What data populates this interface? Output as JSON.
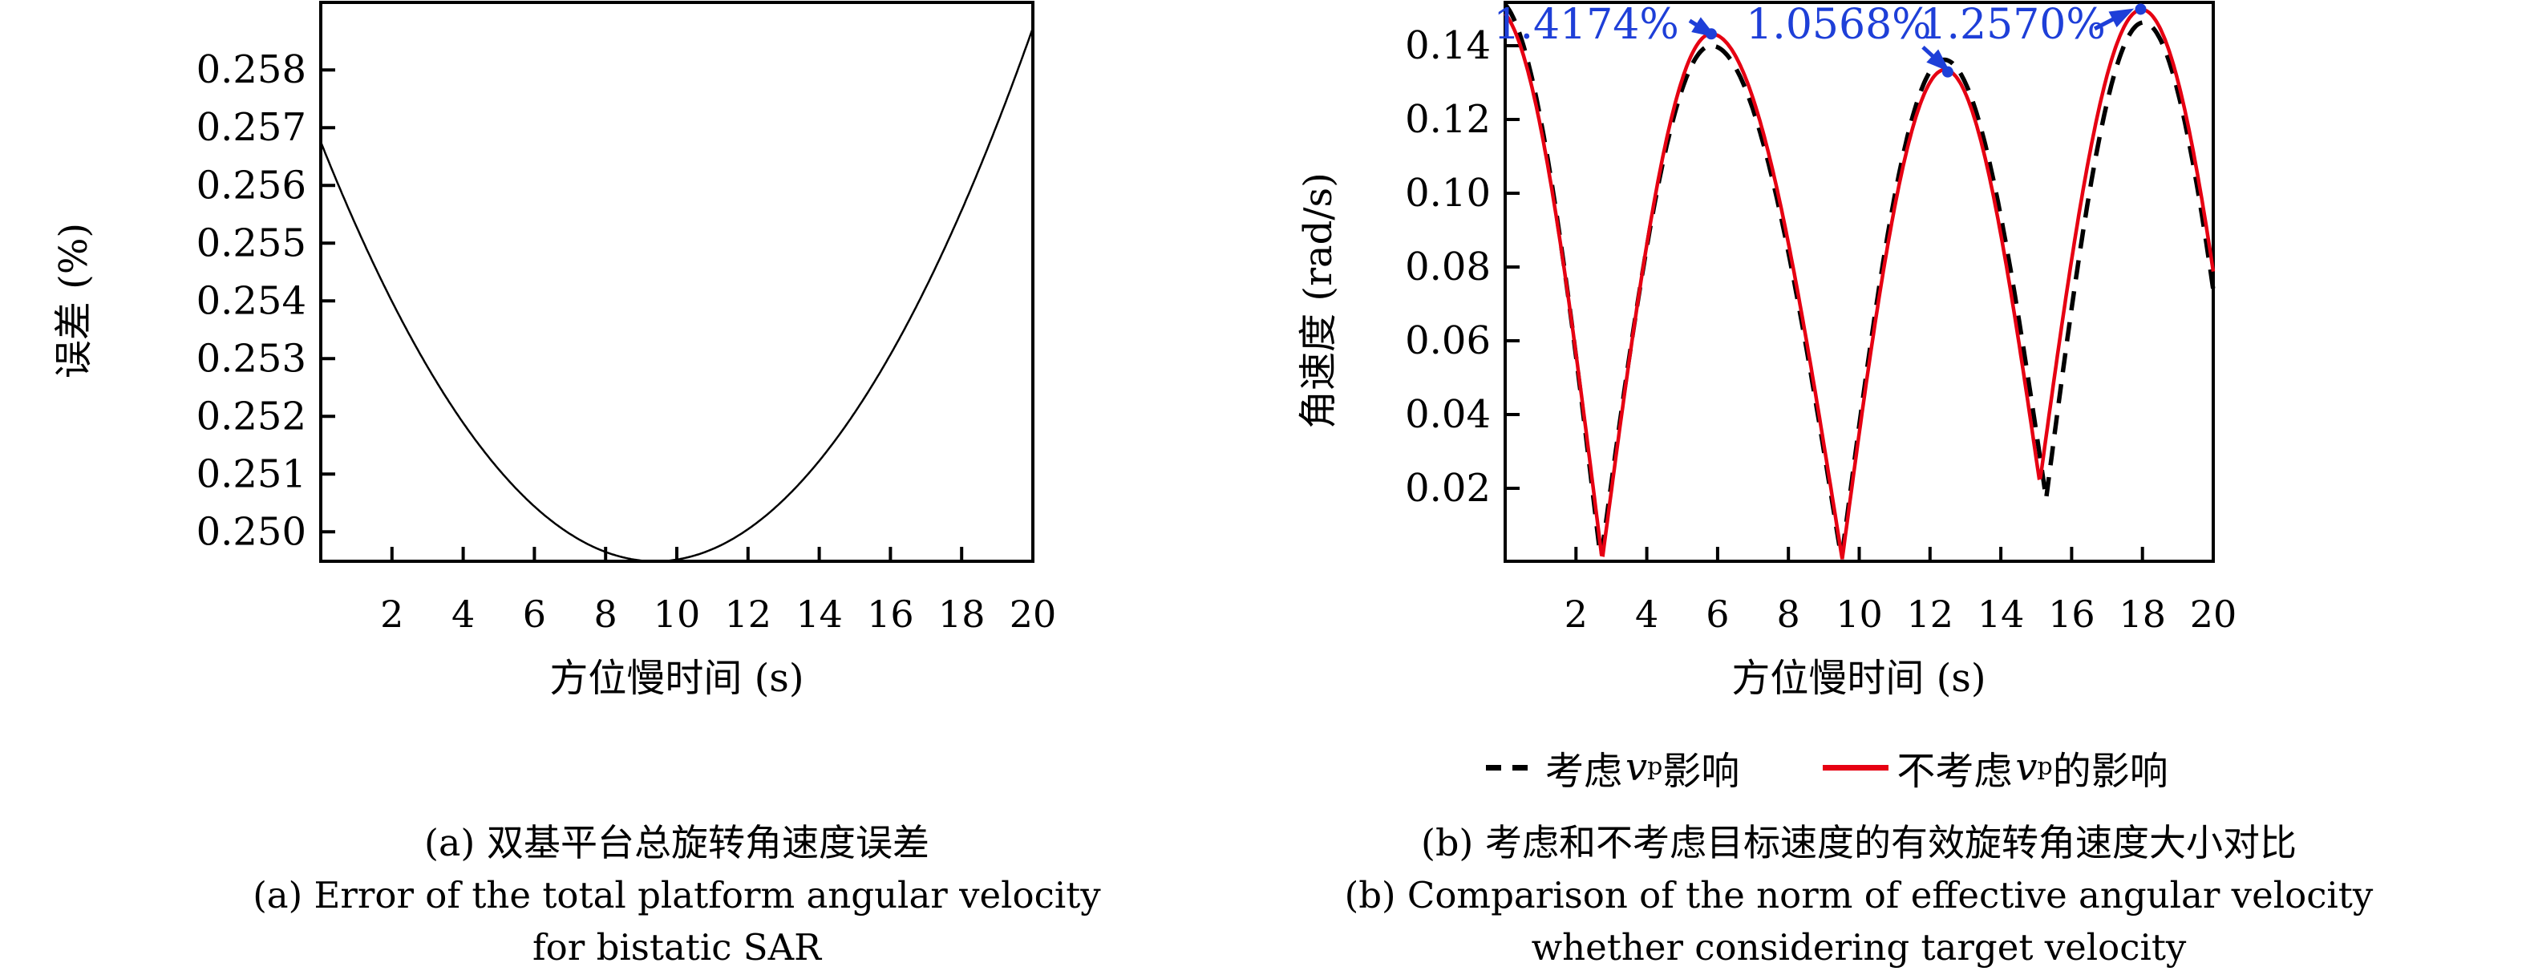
{
  "colors": {
    "axis": "#000000",
    "series_red": "#e60012",
    "series_dashed": "#000000",
    "annotation_blue": "#1e3fd8",
    "background": "#ffffff"
  },
  "chart_data": [
    {
      "id": "a",
      "type": "line",
      "title": "",
      "xlabel": "方位慢时间 (s)",
      "ylabel": "误差 (%)",
      "xlim": [
        0,
        20
      ],
      "ylim": [
        0.24949,
        0.25917
      ],
      "grid": false,
      "xticks": [
        2,
        4,
        6,
        8,
        10,
        12,
        14,
        16,
        18,
        20
      ],
      "ytick_values": [
        0.25,
        0.251,
        0.252,
        0.253,
        0.254,
        0.255,
        0.256,
        0.257,
        0.258
      ],
      "ytick_labels": [
        "0.250",
        "0.251",
        "0.252",
        "0.253",
        "0.254",
        "0.255",
        "0.256",
        "0.257",
        "0.258"
      ],
      "series": [
        {
          "name": "双基平台总旋转角速度误差",
          "style": "solid",
          "color": "#000000",
          "width": 2.5,
          "curve": {
            "kind": "parabola",
            "vertex": [
              9.4,
              0.24949
            ],
            "a": 8.22e-05
          },
          "readings": {
            "y_at_x0": 0.2567,
            "y_min": 0.24949,
            "x_at_min": 9.4,
            "y_at_x20": 0.2587
          }
        }
      ],
      "annotations": []
    },
    {
      "id": "b",
      "type": "line",
      "title": "",
      "xlabel": "方位慢时间 (s)",
      "ylabel": "角速度 (rad/s)",
      "xlim": [
        0,
        20
      ],
      "ylim": [
        0.00022,
        0.15174
      ],
      "grid": false,
      "xticks": [
        2,
        4,
        6,
        8,
        10,
        12,
        14,
        16,
        18,
        20
      ],
      "ytick_values": [
        0.02,
        0.04,
        0.06,
        0.08,
        0.1,
        0.12,
        0.14
      ],
      "ytick_labels": [
        "0.02",
        "0.04",
        "0.06",
        "0.08",
        "0.10",
        "0.12",
        "0.14"
      ],
      "series": [
        {
          "name": "考虑vp影响",
          "style": "dashed",
          "color": "#000000",
          "width": 5.5,
          "dash": [
            24,
            15
          ],
          "curve": {
            "kind": "arches",
            "knots": [
              [
                -0.25,
                0.1525,
                "p"
              ],
              [
                2.7,
                0.0005,
                "m"
              ],
              [
                5.82,
                0.14,
                "p"
              ],
              [
                9.5,
                0.0008,
                "m"
              ],
              [
                12.4,
                0.1362,
                "p"
              ],
              [
                15.28,
                0.0172,
                "m"
              ],
              [
                18.03,
                0.1463,
                "p"
              ],
              [
                21.0,
                0.0,
                "m"
              ]
            ]
          }
        },
        {
          "name": "不考虑vp的影响",
          "style": "solid",
          "color": "#e60012",
          "width": 4.5,
          "curve": {
            "kind": "arches",
            "knots": [
              [
                -0.3,
                0.1505,
                "p"
              ],
              [
                2.74,
                0.0005,
                "m"
              ],
              [
                5.82,
                0.1432,
                "p"
              ],
              [
                9.52,
                0.0008,
                "m"
              ],
              [
                12.42,
                0.1335,
                "p"
              ],
              [
                15.1,
                0.0215,
                "m"
              ],
              [
                17.98,
                0.1498,
                "p"
              ],
              [
                21.1,
                0.0,
                "m"
              ]
            ]
          }
        }
      ],
      "annotations": [
        {
          "text": "1.4174%",
          "text_at": [
            2.29,
            0.1459
          ],
          "arrow_from": [
            5.21,
            0.1468
          ],
          "arrow_to": [
            5.66,
            0.1441
          ],
          "dot": [
            5.82,
            0.1432
          ]
        },
        {
          "text": "1.0568%",
          "text_at": [
            9.42,
            0.1459
          ],
          "arrow_from": [
            11.8,
            0.1396
          ],
          "arrow_to": [
            12.3,
            0.1352
          ],
          "dot": [
            12.5,
            0.1329
          ]
        },
        {
          "text": "1.2570%",
          "text_at": [
            14.34,
            0.1459
          ],
          "arrow_from": [
            16.65,
            0.1446
          ],
          "arrow_to": [
            17.44,
            0.1485
          ],
          "dot": [
            17.95,
            0.1499
          ]
        }
      ]
    }
  ],
  "legend": {
    "items": [
      {
        "swatch": "dashed",
        "pre": "考虑",
        "variable": "v",
        "subscript": "p",
        "post": "影响"
      },
      {
        "swatch": "solid",
        "pre": "不考虑",
        "variable": "v",
        "subscript": "p",
        "post": "的影响"
      }
    ]
  },
  "captions": {
    "a": {
      "zh": "(a) 双基平台总旋转角速度误差",
      "en1": "(a) Error of the total platform angular velocity",
      "en2": "for bistatic SAR"
    },
    "b": {
      "zh": "(b) 考虑和不考虑目标速度的有效旋转角速度大小对比",
      "en1": "(b) Comparison of the norm of effective angular velocity",
      "en2": "whether considering target velocity"
    }
  }
}
